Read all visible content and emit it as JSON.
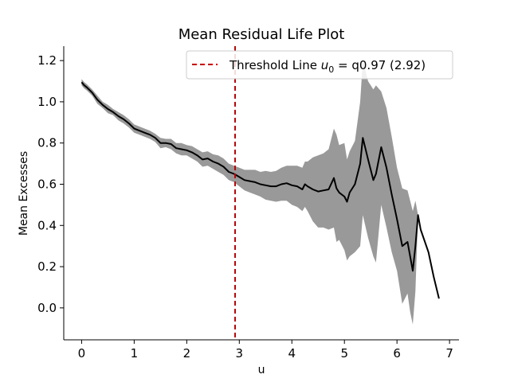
{
  "chart_data": {
    "type": "line",
    "title": "Mean Residual Life Plot",
    "xlabel": "u",
    "ylabel": "Mean Excesses",
    "xlim": [
      -0.34,
      7.18
    ],
    "ylim": [
      -0.155,
      1.27
    ],
    "xticks": [
      0,
      1,
      2,
      3,
      4,
      5,
      6,
      7
    ],
    "xtick_labels": [
      "0",
      "1",
      "2",
      "3",
      "4",
      "5",
      "6",
      "7"
    ],
    "yticks": [
      0.0,
      0.2,
      0.4,
      0.6,
      0.8,
      1.0,
      1.2
    ],
    "ytick_labels": [
      "0.0",
      "0.2",
      "0.4",
      "0.6",
      "0.8",
      "1.0",
      "1.2"
    ],
    "grid": false,
    "legend_position": "top-right",
    "legend": {
      "prefix": "Threshold Line ",
      "symbol": "u",
      "subscript": "0",
      "suffix": " = q0.97 (2.92)"
    },
    "colors": {
      "line": "#000000",
      "band": "#999999",
      "threshold": "#c00000"
    },
    "threshold": 2.92,
    "series": [
      {
        "name": "mean_excess",
        "x": [
          0.0,
          0.05,
          0.1,
          0.2,
          0.3,
          0.4,
          0.5,
          0.6,
          0.7,
          0.8,
          0.9,
          1.0,
          1.1,
          1.2,
          1.3,
          1.4,
          1.5,
          1.6,
          1.7,
          1.8,
          1.9,
          2.0,
          2.1,
          2.2,
          2.3,
          2.4,
          2.5,
          2.6,
          2.7,
          2.8,
          2.9,
          3.0,
          3.1,
          3.2,
          3.3,
          3.4,
          3.5,
          3.6,
          3.7,
          3.8,
          3.9,
          4.0,
          4.1,
          4.2,
          4.25,
          4.3,
          4.4,
          4.5,
          4.6,
          4.7,
          4.8,
          4.85,
          4.9,
          5.0,
          5.05,
          5.1,
          5.2,
          5.3,
          5.35,
          5.45,
          5.55,
          5.6,
          5.7,
          5.8,
          5.9,
          6.0,
          6.1,
          6.2,
          6.25,
          6.3,
          6.35,
          6.4,
          6.45,
          6.6,
          6.7,
          6.8
        ],
        "y": [
          1.095,
          1.08,
          1.07,
          1.045,
          1.01,
          0.985,
          0.965,
          0.95,
          0.93,
          0.915,
          0.895,
          0.87,
          0.86,
          0.85,
          0.84,
          0.825,
          0.8,
          0.8,
          0.795,
          0.775,
          0.77,
          0.765,
          0.755,
          0.74,
          0.72,
          0.725,
          0.71,
          0.7,
          0.685,
          0.66,
          0.65,
          0.635,
          0.62,
          0.615,
          0.61,
          0.6,
          0.595,
          0.59,
          0.59,
          0.6,
          0.605,
          0.595,
          0.59,
          0.575,
          0.6,
          0.59,
          0.575,
          0.565,
          0.57,
          0.575,
          0.63,
          0.58,
          0.56,
          0.54,
          0.515,
          0.56,
          0.6,
          0.7,
          0.825,
          0.72,
          0.62,
          0.65,
          0.78,
          0.68,
          0.55,
          0.43,
          0.3,
          0.32,
          0.25,
          0.18,
          0.3,
          0.45,
          0.38,
          0.27,
          0.15,
          0.045
        ],
        "upper": [
          1.11,
          1.095,
          1.085,
          1.06,
          1.03,
          1.0,
          0.985,
          0.965,
          0.95,
          0.935,
          0.915,
          0.89,
          0.88,
          0.87,
          0.86,
          0.845,
          0.825,
          0.82,
          0.82,
          0.8,
          0.8,
          0.79,
          0.785,
          0.77,
          0.755,
          0.76,
          0.745,
          0.74,
          0.725,
          0.7,
          0.69,
          0.68,
          0.67,
          0.67,
          0.67,
          0.66,
          0.665,
          0.66,
          0.665,
          0.68,
          0.69,
          0.69,
          0.69,
          0.68,
          0.71,
          0.71,
          0.73,
          0.74,
          0.75,
          0.77,
          0.87,
          0.84,
          0.79,
          0.8,
          0.72,
          0.76,
          0.81,
          1.0,
          1.2,
          1.1,
          1.06,
          1.08,
          1.05,
          0.97,
          0.83,
          0.68,
          0.58,
          0.57,
          0.52,
          0.47,
          0.52,
          0.45,
          0.38,
          0.27,
          0.15,
          0.045
        ],
        "lower": [
          1.08,
          1.065,
          1.055,
          1.03,
          0.99,
          0.97,
          0.945,
          0.935,
          0.91,
          0.895,
          0.875,
          0.85,
          0.84,
          0.83,
          0.82,
          0.805,
          0.775,
          0.78,
          0.77,
          0.75,
          0.74,
          0.74,
          0.725,
          0.71,
          0.685,
          0.69,
          0.675,
          0.66,
          0.645,
          0.62,
          0.61,
          0.59,
          0.57,
          0.56,
          0.55,
          0.54,
          0.525,
          0.52,
          0.515,
          0.52,
          0.52,
          0.5,
          0.49,
          0.47,
          0.49,
          0.47,
          0.42,
          0.39,
          0.39,
          0.38,
          0.39,
          0.32,
          0.33,
          0.28,
          0.23,
          0.25,
          0.27,
          0.3,
          0.45,
          0.34,
          0.25,
          0.22,
          0.5,
          0.39,
          0.27,
          0.18,
          0.02,
          0.07,
          -0.02,
          -0.08,
          0.08,
          0.45,
          0.38,
          0.27,
          0.15,
          0.045
        ]
      }
    ]
  }
}
